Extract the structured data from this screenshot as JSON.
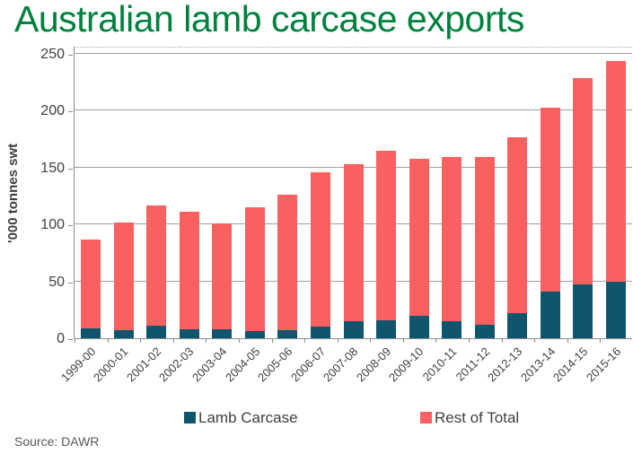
{
  "title": "Australian lamb carcase exports",
  "source_note": "Source: DAWR",
  "y_axis": {
    "label": "'000 tonnes swt",
    "ticks": [
      0,
      50,
      100,
      150,
      200,
      250
    ]
  },
  "legend": [
    {
      "label": "Lamb Carcase",
      "color": "#10556E"
    },
    {
      "label": "Rest of Total",
      "color": "#F96161"
    }
  ],
  "colors": {
    "title": "#00813D",
    "axis_text": "#404040",
    "gridline": "#9E9E9E",
    "axis_line": "#8C8C8C",
    "source_text": "#595959",
    "bar_lamb": "#10556E",
    "bar_rest": "#F96161"
  },
  "chart_data": {
    "type": "bar",
    "stacked": true,
    "title": "Australian lamb carcase exports",
    "xlabel": "",
    "ylabel": "'000 tonnes swt",
    "ylim": [
      0,
      250
    ],
    "grid": true,
    "legend_position": "bottom",
    "categories": [
      "1999-00",
      "2000-01",
      "2001-02",
      "2002-03",
      "2003-04",
      "2004-05",
      "2005-06",
      "2006-07",
      "2007-08",
      "2008-09",
      "2009-10",
      "2010-11",
      "2011-12",
      "2012-13",
      "2013-14",
      "2014-15",
      "2015-16"
    ],
    "series": [
      {
        "name": "Lamb Carcase",
        "color": "#10556E",
        "values": [
          9,
          7,
          11,
          8,
          8,
          6,
          7,
          10,
          15,
          16,
          20,
          15,
          12,
          22,
          41,
          47,
          50
        ]
      },
      {
        "name": "Rest of Total",
        "color": "#F96161",
        "values": [
          78,
          95,
          106,
          103,
          93,
          109,
          119,
          136,
          138,
          149,
          138,
          144,
          147,
          155,
          162,
          182,
          194
        ]
      }
    ],
    "totals": [
      87,
      102,
      117,
      111,
      101,
      115,
      126,
      146,
      153,
      165,
      158,
      159,
      159,
      177,
      203,
      229,
      244
    ]
  }
}
